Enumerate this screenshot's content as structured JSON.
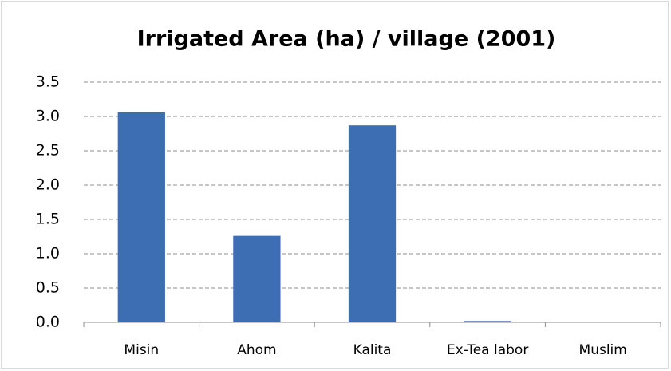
{
  "chart_data": {
    "type": "bar",
    "title": "Irrigated Area (ha) / village (2001)",
    "categories": [
      "Misin",
      "Ahom",
      "Kalita",
      "Ex-Tea labor",
      "Muslim"
    ],
    "values": [
      3.06,
      1.26,
      2.87,
      0.02,
      0
    ],
    "color": "#3d6eb4",
    "ylim": [
      0,
      3.5
    ],
    "yticks": [
      {
        "value": 0,
        "label": "0.0"
      },
      {
        "value": 0.5,
        "label": "0.5"
      },
      {
        "value": 1,
        "label": "1.0"
      },
      {
        "value": 1.5,
        "label": "1.5"
      },
      {
        "value": 2,
        "label": "2.0"
      },
      {
        "value": 2.5,
        "label": "2.5"
      },
      {
        "value": 3,
        "label": "3.0"
      },
      {
        "value": 3.5,
        "label": "3.5"
      }
    ],
    "grid": true
  }
}
